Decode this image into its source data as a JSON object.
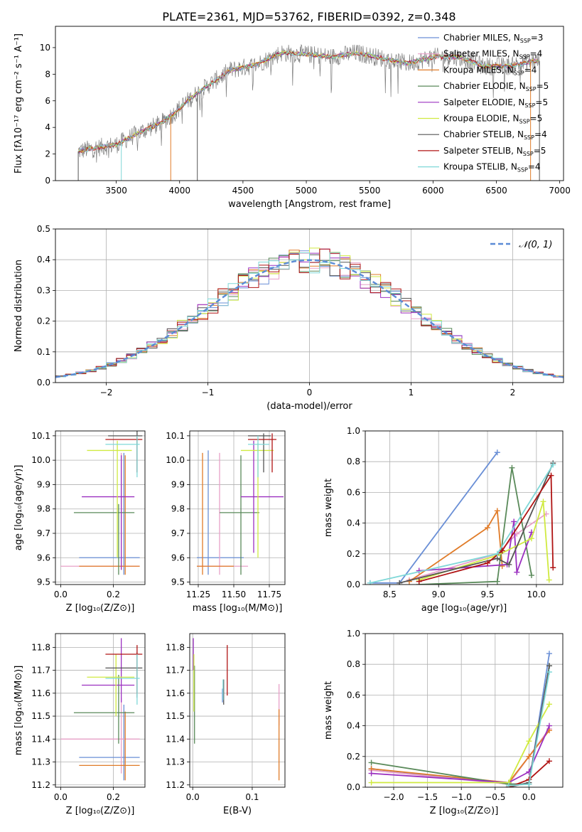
{
  "figure_title": "PLATE=2361, MJD=53762, FIBERID=0392, z=0.348",
  "colors": [
    "#6a8fd6",
    "#e8a0c8",
    "#e07b28",
    "#5a8a5a",
    "#9b30c0",
    "#d0ea40",
    "#555555",
    "#b01414",
    "#7fd8d8"
  ],
  "legend_entries": [
    {
      "pre": "Chabrier MILES, N",
      "sub": "SSP",
      "post": "=3"
    },
    {
      "pre": "Salpeter MILES, N",
      "sub": "SSP",
      "post": "=4"
    },
    {
      "pre": "Kroupa MILES, N",
      "sub": "SSP",
      "post": "=4"
    },
    {
      "pre": "Chabrier ELODIE, N",
      "sub": "SSP",
      "post": "=5"
    },
    {
      "pre": "Salpeter ELODIE, N",
      "sub": "SSP",
      "post": "=5"
    },
    {
      "pre": "Kroupa ELODIE, N",
      "sub": "SSP",
      "post": "=5"
    },
    {
      "pre": "Chabrier STELIB, N",
      "sub": "SSP",
      "post": "=4"
    },
    {
      "pre": "Salpeter STELIB, N",
      "sub": "SSP",
      "post": "=5"
    },
    {
      "pre": "Kroupa STELIB, N",
      "sub": "SSP",
      "post": "=4"
    }
  ],
  "chart_data": [
    {
      "id": "spectrum",
      "type": "line",
      "xlabel": "wavelength [Angstrom, rest frame]",
      "ylabel": "Flux [fλ10⁻¹⁷ erg cm⁻² s⁻¹ A⁻¹]",
      "xlim": [
        3020,
        7030
      ],
      "ylim": [
        0,
        11.6
      ],
      "xticks": [
        3500,
        4000,
        4500,
        5000,
        5500,
        6000,
        6500,
        7000
      ],
      "yticks": [
        0,
        2,
        4,
        6,
        8,
        10
      ],
      "legend": "upper-right",
      "continuum": {
        "x": [
          3200,
          3300,
          3500,
          3700,
          3850,
          3950,
          4050,
          4200,
          4400,
          4600,
          4800,
          5000,
          5200,
          5400,
          5600,
          5800,
          6000,
          6200,
          6400,
          6600,
          6800
        ],
        "y": [
          2.2,
          2.4,
          2.7,
          3.7,
          4.3,
          5.0,
          5.9,
          7.0,
          8.3,
          8.7,
          9.6,
          9.5,
          9.3,
          9.6,
          9.2,
          8.8,
          9.3,
          9.3,
          8.6,
          8.6,
          9.0
        ]
      },
      "x_range": [
        3200,
        6840
      ]
    },
    {
      "id": "residuals",
      "type": "histogram",
      "xlabel": "(data-model)/error",
      "ylabel": "Normed distribution",
      "xlim": [
        -2.5,
        2.5
      ],
      "ylim": [
        0,
        0.5
      ],
      "xticks": [
        -2,
        -1,
        0,
        1,
        2
      ],
      "yticks": [
        0.0,
        0.1,
        0.2,
        0.3,
        0.4,
        0.5
      ],
      "bin_width": 0.1,
      "bin_start": -2.5,
      "grid": true,
      "legend": "upper-right",
      "reference_curve": {
        "label": "𝒩(0, 1)",
        "mu": 0,
        "sigma": 1
      }
    },
    {
      "id": "age-vs-Z",
      "type": "errorbar",
      "xlabel": "Z [log₁₀(Z/Z⊙)]",
      "ylabel": "age  [log₁₀(age/yr)]",
      "xlim": [
        -0.02,
        0.32
      ],
      "ylim": [
        9.49,
        10.12
      ],
      "xticks": [
        0.0,
        0.2
      ],
      "yticks": [
        9.5,
        9.6,
        9.7,
        9.8,
        9.9,
        10.0,
        10.1
      ],
      "grid": true,
      "points": [
        {
          "c": 0,
          "x": 0.24,
          "y": 9.6,
          "xlo": 0.07,
          "xhi": 0.3,
          "ylo": 9.53,
          "yhi": 10.03
        },
        {
          "c": 1,
          "x": 0.23,
          "y": 9.565,
          "xlo": 0.0,
          "xhi": 0.3,
          "ylo": 9.55,
          "yhi": 10.03
        },
        {
          "c": 2,
          "x": 0.245,
          "y": 9.565,
          "xlo": 0.07,
          "xhi": 0.3,
          "ylo": 9.53,
          "yhi": 10.02
        },
        {
          "c": 3,
          "x": 0.22,
          "y": 9.785,
          "xlo": 0.05,
          "xhi": 0.28,
          "ylo": 9.53,
          "yhi": 9.82
        },
        {
          "c": 4,
          "x": 0.23,
          "y": 9.85,
          "xlo": 0.08,
          "xhi": 0.28,
          "ylo": 9.55,
          "yhi": 10.02
        },
        {
          "c": 5,
          "x": 0.215,
          "y": 10.04,
          "xlo": 0.1,
          "xhi": 0.27,
          "ylo": 9.6,
          "yhi": 10.08
        },
        {
          "c": 6,
          "x": 0.29,
          "y": 10.1,
          "xlo": 0.18,
          "xhi": 0.31,
          "ylo": 9.95,
          "yhi": 10.12
        },
        {
          "c": 7,
          "x": 0.29,
          "y": 10.085,
          "xlo": 0.17,
          "xhi": 0.31,
          "ylo": 9.95,
          "yhi": 10.1
        },
        {
          "c": 8,
          "x": 0.29,
          "y": 10.065,
          "xlo": 0.17,
          "xhi": 0.3,
          "ylo": 9.93,
          "yhi": 10.1
        }
      ]
    },
    {
      "id": "age-vs-mass",
      "type": "errorbar",
      "xlabel": "mass [log₁₀(M/M⊙)]",
      "ylabel": "",
      "xlim": [
        11.19,
        11.86
      ],
      "ylim": [
        9.49,
        10.12
      ],
      "xticks": [
        11.25,
        11.5,
        11.75
      ],
      "yticks": [
        9.5,
        9.6,
        9.7,
        9.8,
        9.9,
        10.0,
        10.1
      ],
      "grid": true,
      "points": [
        {
          "c": 0,
          "x": 11.32,
          "y": 9.6,
          "xlo": 11.24,
          "xhi": 11.57,
          "ylo": 9.53,
          "yhi": 10.04
        },
        {
          "c": 1,
          "x": 11.4,
          "y": 9.565,
          "xlo": 11.24,
          "xhi": 11.6,
          "ylo": 9.53,
          "yhi": 10.03
        },
        {
          "c": 2,
          "x": 11.28,
          "y": 9.565,
          "xlo": 11.24,
          "xhi": 11.5,
          "ylo": 9.53,
          "yhi": 10.03
        },
        {
          "c": 3,
          "x": 11.55,
          "y": 9.785,
          "xlo": 11.4,
          "xhi": 11.68,
          "ylo": 9.53,
          "yhi": 10.02
        },
        {
          "c": 4,
          "x": 11.64,
          "y": 9.85,
          "xlo": 11.55,
          "xhi": 11.85,
          "ylo": 9.62,
          "yhi": 10.08
        },
        {
          "c": 5,
          "x": 11.67,
          "y": 10.04,
          "xlo": 11.55,
          "xhi": 11.78,
          "ylo": 9.6,
          "yhi": 10.07
        },
        {
          "c": 6,
          "x": 11.71,
          "y": 10.1,
          "xlo": 11.6,
          "xhi": 11.76,
          "ylo": 9.95,
          "yhi": 10.11
        },
        {
          "c": 7,
          "x": 11.77,
          "y": 10.085,
          "xlo": 11.6,
          "xhi": 11.8,
          "ylo": 9.95,
          "yhi": 10.11
        },
        {
          "c": 8,
          "x": 11.67,
          "y": 10.065,
          "xlo": 11.6,
          "xhi": 11.75,
          "ylo": 9.93,
          "yhi": 10.1
        }
      ]
    },
    {
      "id": "weight-vs-age",
      "type": "line",
      "xlabel": "age  [log₁₀(age/yr)]",
      "ylabel": "mass weight",
      "xlim": [
        8.25,
        10.27
      ],
      "ylim": [
        0,
        1.0
      ],
      "xticks": [
        8.5,
        9.0,
        9.5,
        10.0
      ],
      "yticks": [
        0.0,
        0.2,
        0.4,
        0.6,
        0.8,
        1.0
      ],
      "grid": true,
      "series": [
        {
          "c": 0,
          "x": [
            8.3,
            8.6,
            9.6
          ],
          "y": [
            0.01,
            0.01,
            0.86
          ]
        },
        {
          "c": 1,
          "x": [
            8.7,
            9.6,
            9.8,
            10.1
          ],
          "y": [
            0.03,
            0.2,
            0.33,
            0.46
          ]
        },
        {
          "c": 2,
          "x": [
            8.7,
            9.5,
            9.6,
            9.65
          ],
          "y": [
            0.02,
            0.37,
            0.48,
            0.12
          ]
        },
        {
          "c": 3,
          "x": [
            8.8,
            9.6,
            9.75,
            9.95
          ],
          "y": [
            0.0,
            0.02,
            0.76,
            0.06
          ]
        },
        {
          "c": 4,
          "x": [
            8.8,
            9.7,
            9.77,
            9.8,
            9.95
          ],
          "y": [
            0.09,
            0.13,
            0.41,
            0.08,
            0.34
          ]
        },
        {
          "c": 5,
          "x": [
            8.8,
            9.6,
            9.95,
            10.07,
            10.13
          ],
          "y": [
            0.03,
            0.19,
            0.3,
            0.54,
            0.03
          ]
        },
        {
          "c": 6,
          "x": [
            8.6,
            9.6,
            9.72,
            10.17
          ],
          "y": [
            0.01,
            0.17,
            0.13,
            0.79
          ]
        },
        {
          "c": 7,
          "x": [
            8.8,
            9.5,
            9.65,
            10.15,
            10.17
          ],
          "y": [
            0.02,
            0.14,
            0.22,
            0.71,
            0.11
          ]
        },
        {
          "c": 8,
          "x": [
            8.3,
            9.6,
            10.17
          ],
          "y": [
            0.01,
            0.2,
            0.78
          ]
        }
      ]
    },
    {
      "id": "mass-vs-Z",
      "type": "errorbar",
      "xlabel": "Z [log₁₀(Z/Z⊙)]",
      "ylabel": "mass [log₁₀(M/M⊙)]",
      "xlim": [
        -0.02,
        0.32
      ],
      "ylim": [
        11.19,
        11.86
      ],
      "xticks": [
        0.0,
        0.2
      ],
      "yticks": [
        11.2,
        11.3,
        11.4,
        11.5,
        11.6,
        11.7,
        11.8
      ],
      "grid": true,
      "points": [
        {
          "c": 0,
          "x": 0.24,
          "y": 11.32,
          "xlo": 0.07,
          "xhi": 0.3,
          "ylo": 11.22,
          "yhi": 11.55
        },
        {
          "c": 1,
          "x": 0.23,
          "y": 11.4,
          "xlo": 0.0,
          "xhi": 0.3,
          "ylo": 11.25,
          "yhi": 11.58
        },
        {
          "c": 2,
          "x": 0.245,
          "y": 11.285,
          "xlo": 0.07,
          "xhi": 0.3,
          "ylo": 11.22,
          "yhi": 11.52
        },
        {
          "c": 3,
          "x": 0.22,
          "y": 11.515,
          "xlo": 0.05,
          "xhi": 0.28,
          "ylo": 11.38,
          "yhi": 11.68
        },
        {
          "c": 4,
          "x": 0.23,
          "y": 11.635,
          "xlo": 0.08,
          "xhi": 0.28,
          "ylo": 11.56,
          "yhi": 11.84
        },
        {
          "c": 5,
          "x": 0.21,
          "y": 11.67,
          "xlo": 0.1,
          "xhi": 0.28,
          "ylo": 11.5,
          "yhi": 11.77
        },
        {
          "c": 6,
          "x": 0.29,
          "y": 11.71,
          "xlo": 0.17,
          "xhi": 0.31,
          "ylo": 11.58,
          "yhi": 11.78
        },
        {
          "c": 7,
          "x": 0.29,
          "y": 11.77,
          "xlo": 0.17,
          "xhi": 0.31,
          "ylo": 11.6,
          "yhi": 11.81
        },
        {
          "c": 8,
          "x": 0.29,
          "y": 11.665,
          "xlo": 0.17,
          "xhi": 0.3,
          "ylo": 11.55,
          "yhi": 11.77
        }
      ]
    },
    {
      "id": "mass-vs-EBV",
      "type": "errorbar",
      "xlabel": "E(B-V)",
      "ylabel": "",
      "xlim": [
        -0.005,
        0.155
      ],
      "ylim": [
        11.19,
        11.86
      ],
      "xticks": [
        0.0,
        0.1
      ],
      "yticks": [
        11.2,
        11.3,
        11.4,
        11.5,
        11.6,
        11.7,
        11.8
      ],
      "grid": true,
      "points": [
        {
          "c": 0,
          "x": 0.05,
          "y": 11.6,
          "xlo": 0.05,
          "xhi": 0.05,
          "ylo": 11.56,
          "yhi": 11.62
        },
        {
          "c": 1,
          "x": 0.145,
          "y": 11.55,
          "xlo": 0.145,
          "xhi": 0.145,
          "ylo": 11.46,
          "yhi": 11.64
        },
        {
          "c": 2,
          "x": 0.145,
          "y": 11.38,
          "xlo": 0.145,
          "xhi": 0.145,
          "ylo": 11.22,
          "yhi": 11.53
        },
        {
          "c": 3,
          "x": 0.003,
          "y": 11.55,
          "xlo": 0.003,
          "xhi": 0.003,
          "ylo": 11.38,
          "yhi": 11.72
        },
        {
          "c": 4,
          "x": 0.001,
          "y": 11.77,
          "xlo": 0.001,
          "xhi": 0.001,
          "ylo": 11.7,
          "yhi": 11.84
        },
        {
          "c": 5,
          "x": 0.002,
          "y": 11.65,
          "xlo": 0.002,
          "xhi": 0.002,
          "ylo": 11.52,
          "yhi": 11.77
        },
        {
          "c": 6,
          "x": 0.052,
          "y": 11.6,
          "xlo": 0.052,
          "xhi": 0.052,
          "ylo": 11.55,
          "yhi": 11.66
        },
        {
          "c": 7,
          "x": 0.058,
          "y": 11.7,
          "xlo": 0.058,
          "xhi": 0.058,
          "ylo": 11.59,
          "yhi": 11.81
        },
        {
          "c": 8,
          "x": 0.051,
          "y": 11.6,
          "xlo": 0.051,
          "xhi": 0.051,
          "ylo": 11.57,
          "yhi": 11.66
        }
      ]
    },
    {
      "id": "weight-vs-Z",
      "type": "line",
      "xlabel": "Z [log₁₀(Z/Z⊙)]",
      "ylabel": "mass weight",
      "xlim": [
        -2.42,
        0.5
      ],
      "ylim": [
        0,
        1.0
      ],
      "xticks": [
        -2.0,
        -1.5,
        -1.0,
        -0.5,
        0.0
      ],
      "yticks": [
        0.0,
        0.2,
        0.4,
        0.6,
        0.8,
        1.0
      ],
      "grid": true,
      "series": [
        {
          "c": 0,
          "x": [
            -2.33,
            -0.3,
            0.0,
            0.3
          ],
          "y": [
            0.12,
            0.02,
            0.02,
            0.87
          ]
        },
        {
          "c": 1,
          "x": [
            -2.33,
            -0.3,
            0.0,
            0.3
          ],
          "y": [
            0.11,
            0.02,
            0.2,
            0.38
          ]
        },
        {
          "c": 2,
          "x": [
            -2.33,
            -0.3,
            0.0,
            0.3
          ],
          "y": [
            0.12,
            0.03,
            0.2,
            0.37
          ]
        },
        {
          "c": 3,
          "x": [
            -2.33,
            -0.3,
            0.0,
            0.3
          ],
          "y": [
            0.16,
            0.02,
            0.02,
            0.79
          ]
        },
        {
          "c": 4,
          "x": [
            -2.33,
            -0.3,
            0.0,
            0.3
          ],
          "y": [
            0.09,
            0.03,
            0.1,
            0.4
          ]
        },
        {
          "c": 5,
          "x": [
            -2.33,
            -0.3,
            0.0,
            0.3
          ],
          "y": [
            0.03,
            0.03,
            0.3,
            0.54
          ]
        },
        {
          "c": 6,
          "x": [
            -0.3,
            0.0,
            0.3
          ],
          "y": [
            0.0,
            0.03,
            0.79
          ]
        },
        {
          "c": 7,
          "x": [
            -0.3,
            0.0,
            0.3
          ],
          "y": [
            0.0,
            0.05,
            0.17
          ]
        },
        {
          "c": 8,
          "x": [
            -0.3,
            0.0,
            0.3
          ],
          "y": [
            0.01,
            0.02,
            0.75
          ]
        }
      ]
    }
  ]
}
